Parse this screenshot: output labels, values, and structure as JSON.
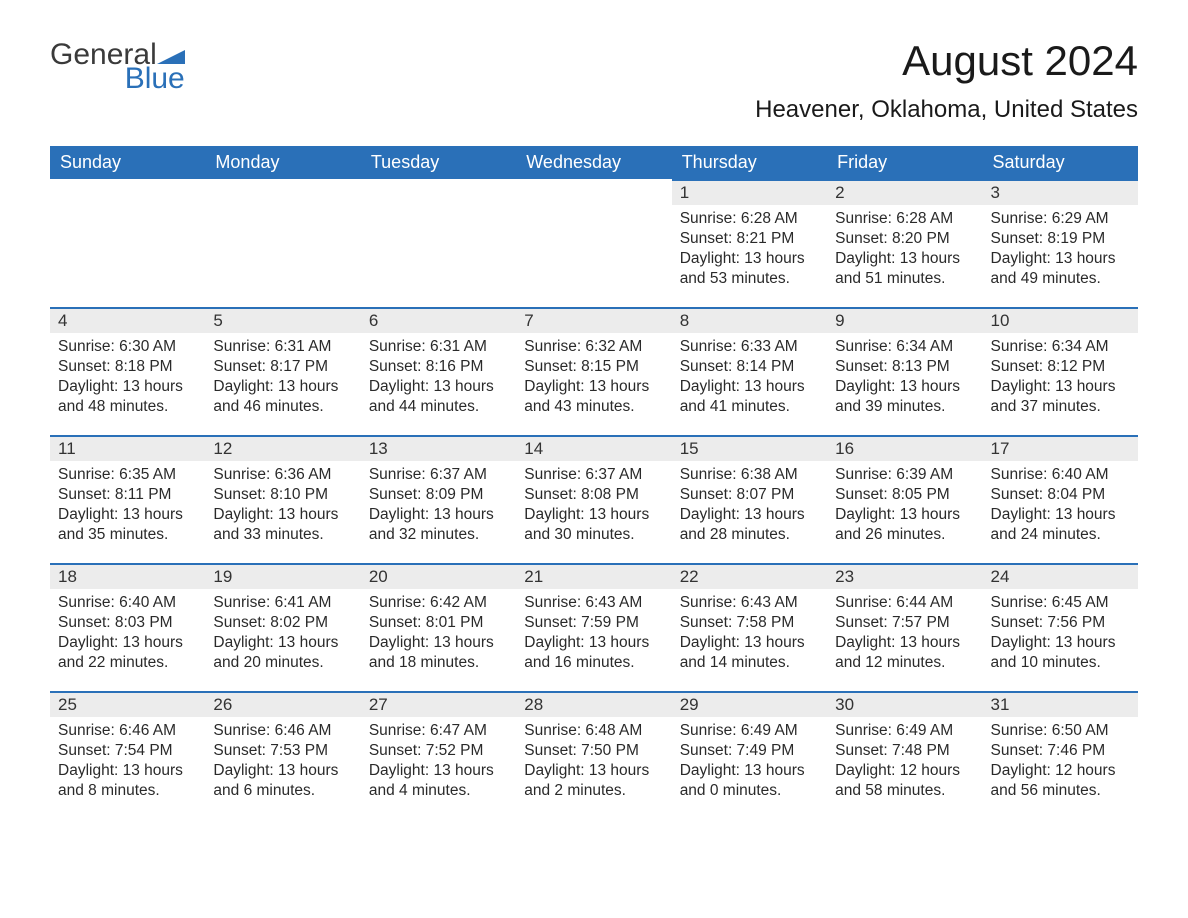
{
  "brand": {
    "word1": "General",
    "word2": "Blue",
    "flag_color": "#2a70b8"
  },
  "title": "August 2024",
  "location": "Heavener, Oklahoma, United States",
  "colors": {
    "header_bg": "#2a70b8",
    "header_text": "#ffffff",
    "daynum_bg": "#ececec",
    "daynum_border": "#2a70b8",
    "body_text": "#2a2a2a",
    "page_bg": "#ffffff"
  },
  "typography": {
    "title_fontsize": 42,
    "location_fontsize": 24,
    "header_fontsize": 18,
    "daynum_fontsize": 17,
    "body_fontsize": 15.5
  },
  "weekdays": [
    "Sunday",
    "Monday",
    "Tuesday",
    "Wednesday",
    "Thursday",
    "Friday",
    "Saturday"
  ],
  "weeks": [
    [
      null,
      null,
      null,
      null,
      {
        "n": "1",
        "sunrise": "6:28 AM",
        "sunset": "8:21 PM",
        "daylight": "13 hours and 53 minutes."
      },
      {
        "n": "2",
        "sunrise": "6:28 AM",
        "sunset": "8:20 PM",
        "daylight": "13 hours and 51 minutes."
      },
      {
        "n": "3",
        "sunrise": "6:29 AM",
        "sunset": "8:19 PM",
        "daylight": "13 hours and 49 minutes."
      }
    ],
    [
      {
        "n": "4",
        "sunrise": "6:30 AM",
        "sunset": "8:18 PM",
        "daylight": "13 hours and 48 minutes."
      },
      {
        "n": "5",
        "sunrise": "6:31 AM",
        "sunset": "8:17 PM",
        "daylight": "13 hours and 46 minutes."
      },
      {
        "n": "6",
        "sunrise": "6:31 AM",
        "sunset": "8:16 PM",
        "daylight": "13 hours and 44 minutes."
      },
      {
        "n": "7",
        "sunrise": "6:32 AM",
        "sunset": "8:15 PM",
        "daylight": "13 hours and 43 minutes."
      },
      {
        "n": "8",
        "sunrise": "6:33 AM",
        "sunset": "8:14 PM",
        "daylight": "13 hours and 41 minutes."
      },
      {
        "n": "9",
        "sunrise": "6:34 AM",
        "sunset": "8:13 PM",
        "daylight": "13 hours and 39 minutes."
      },
      {
        "n": "10",
        "sunrise": "6:34 AM",
        "sunset": "8:12 PM",
        "daylight": "13 hours and 37 minutes."
      }
    ],
    [
      {
        "n": "11",
        "sunrise": "6:35 AM",
        "sunset": "8:11 PM",
        "daylight": "13 hours and 35 minutes."
      },
      {
        "n": "12",
        "sunrise": "6:36 AM",
        "sunset": "8:10 PM",
        "daylight": "13 hours and 33 minutes."
      },
      {
        "n": "13",
        "sunrise": "6:37 AM",
        "sunset": "8:09 PM",
        "daylight": "13 hours and 32 minutes."
      },
      {
        "n": "14",
        "sunrise": "6:37 AM",
        "sunset": "8:08 PM",
        "daylight": "13 hours and 30 minutes."
      },
      {
        "n": "15",
        "sunrise": "6:38 AM",
        "sunset": "8:07 PM",
        "daylight": "13 hours and 28 minutes."
      },
      {
        "n": "16",
        "sunrise": "6:39 AM",
        "sunset": "8:05 PM",
        "daylight": "13 hours and 26 minutes."
      },
      {
        "n": "17",
        "sunrise": "6:40 AM",
        "sunset": "8:04 PM",
        "daylight": "13 hours and 24 minutes."
      }
    ],
    [
      {
        "n": "18",
        "sunrise": "6:40 AM",
        "sunset": "8:03 PM",
        "daylight": "13 hours and 22 minutes."
      },
      {
        "n": "19",
        "sunrise": "6:41 AM",
        "sunset": "8:02 PM",
        "daylight": "13 hours and 20 minutes."
      },
      {
        "n": "20",
        "sunrise": "6:42 AM",
        "sunset": "8:01 PM",
        "daylight": "13 hours and 18 minutes."
      },
      {
        "n": "21",
        "sunrise": "6:43 AM",
        "sunset": "7:59 PM",
        "daylight": "13 hours and 16 minutes."
      },
      {
        "n": "22",
        "sunrise": "6:43 AM",
        "sunset": "7:58 PM",
        "daylight": "13 hours and 14 minutes."
      },
      {
        "n": "23",
        "sunrise": "6:44 AM",
        "sunset": "7:57 PM",
        "daylight": "13 hours and 12 minutes."
      },
      {
        "n": "24",
        "sunrise": "6:45 AM",
        "sunset": "7:56 PM",
        "daylight": "13 hours and 10 minutes."
      }
    ],
    [
      {
        "n": "25",
        "sunrise": "6:46 AM",
        "sunset": "7:54 PM",
        "daylight": "13 hours and 8 minutes."
      },
      {
        "n": "26",
        "sunrise": "6:46 AM",
        "sunset": "7:53 PM",
        "daylight": "13 hours and 6 minutes."
      },
      {
        "n": "27",
        "sunrise": "6:47 AM",
        "sunset": "7:52 PM",
        "daylight": "13 hours and 4 minutes."
      },
      {
        "n": "28",
        "sunrise": "6:48 AM",
        "sunset": "7:50 PM",
        "daylight": "13 hours and 2 minutes."
      },
      {
        "n": "29",
        "sunrise": "6:49 AM",
        "sunset": "7:49 PM",
        "daylight": "13 hours and 0 minutes."
      },
      {
        "n": "30",
        "sunrise": "6:49 AM",
        "sunset": "7:48 PM",
        "daylight": "12 hours and 58 minutes."
      },
      {
        "n": "31",
        "sunrise": "6:50 AM",
        "sunset": "7:46 PM",
        "daylight": "12 hours and 56 minutes."
      }
    ]
  ],
  "labels": {
    "sunrise": "Sunrise:",
    "sunset": "Sunset:",
    "daylight": "Daylight:"
  }
}
